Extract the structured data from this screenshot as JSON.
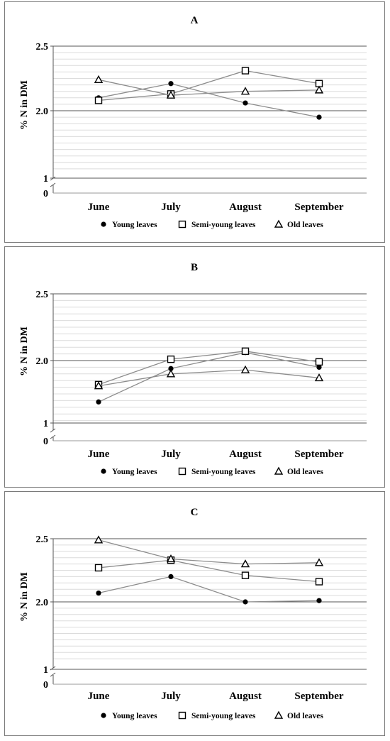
{
  "chart_data": [
    {
      "type": "line",
      "title": "A",
      "ylabel": "% N in DM",
      "xlabel": "",
      "categories": [
        "June",
        "July",
        "August",
        "September"
      ],
      "yticks": [
        "2.5",
        "2.0",
        "1",
        "0"
      ],
      "axis_break": "between 0 and 1.5 (broken axis)",
      "ylim": [
        1.5,
        2.5
      ],
      "grid": true,
      "legend_position": "bottom",
      "series": [
        {
          "name": "Young leaves",
          "marker": "filled-circle",
          "values": [
            2.1,
            2.21,
            2.06,
            1.95
          ]
        },
        {
          "name": "Semi-young leaves",
          "marker": "open-square",
          "values": [
            2.08,
            2.13,
            2.31,
            2.21
          ]
        },
        {
          "name": "Old leaves",
          "marker": "open-triangle",
          "values": [
            2.24,
            2.12,
            2.15,
            2.16
          ]
        }
      ]
    },
    {
      "type": "line",
      "title": "B",
      "ylabel": "% N in DM",
      "xlabel": "",
      "categories": [
        "June",
        "July",
        "August",
        "September"
      ],
      "yticks": [
        "2.5",
        "2.0",
        "1",
        "0"
      ],
      "axis_break": "between 0 and 1.5 (broken axis)",
      "ylim": [
        1.5,
        2.5
      ],
      "grid": true,
      "legend_position": "bottom",
      "series": [
        {
          "name": "Young leaves",
          "marker": "filled-circle",
          "values": [
            1.69,
            1.94,
            2.06,
            1.95
          ]
        },
        {
          "name": "Semi-young leaves",
          "marker": "open-square",
          "values": [
            1.82,
            2.01,
            2.07,
            1.99
          ]
        },
        {
          "name": "Old leaves",
          "marker": "open-triangle",
          "values": [
            1.81,
            1.9,
            1.93,
            1.87
          ]
        }
      ]
    },
    {
      "type": "line",
      "title": "C",
      "ylabel": "% N in DM",
      "xlabel": "",
      "categories": [
        "June",
        "July",
        "August",
        "September"
      ],
      "yticks": [
        "2.5",
        "2.0",
        "1",
        "0"
      ],
      "axis_break": "between 0 and 1.5 (broken axis)",
      "ylim": [
        1.5,
        2.5
      ],
      "grid": true,
      "legend_position": "bottom",
      "series": [
        {
          "name": "Young leaves",
          "marker": "filled-circle",
          "values": [
            2.07,
            2.2,
            2.0,
            2.01
          ]
        },
        {
          "name": "Semi-young leaves",
          "marker": "open-square",
          "values": [
            2.27,
            2.33,
            2.21,
            2.16
          ]
        },
        {
          "name": "Old leaves",
          "marker": "open-triangle",
          "values": [
            2.49,
            2.34,
            2.3,
            2.31
          ]
        }
      ]
    }
  ],
  "colors": {
    "line": "#8c8c8c",
    "major_grid": "#555555",
    "minor_grid": "#dcdcdc",
    "marker": "#000000",
    "panel_border": "#7a7a7a"
  }
}
